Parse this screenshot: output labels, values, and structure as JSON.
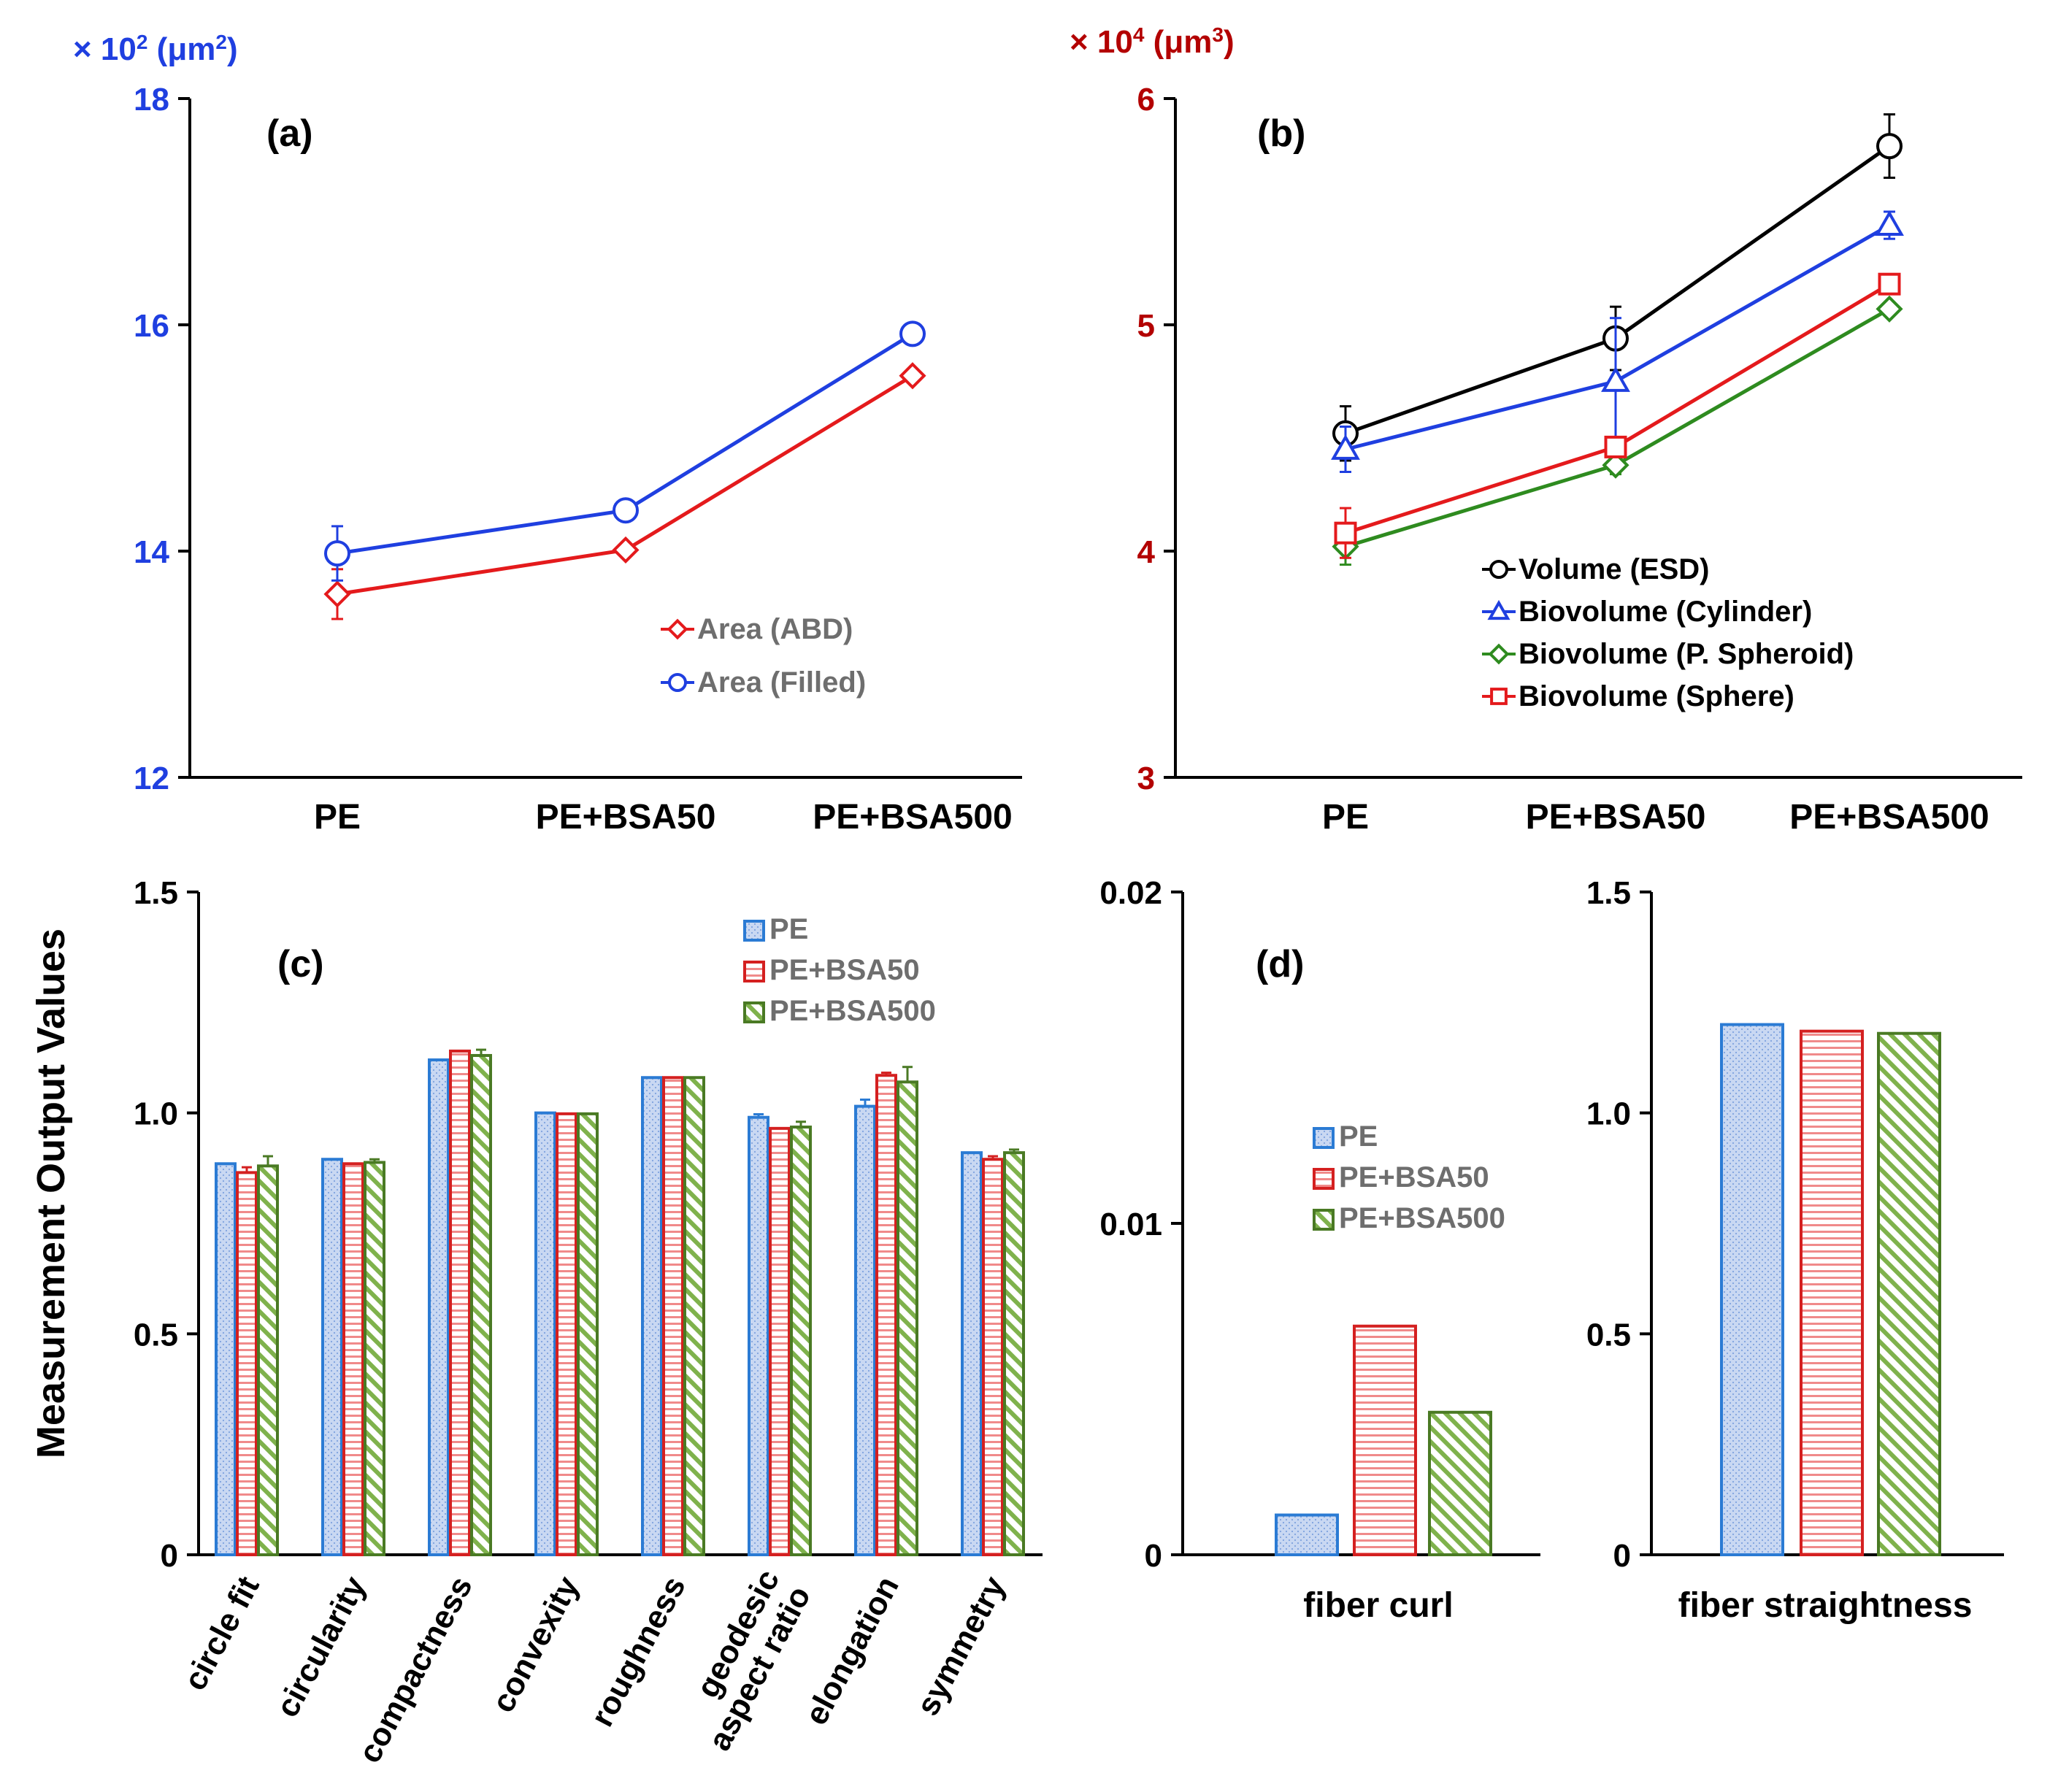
{
  "figure": {
    "ylabel_cd": "Measurement Output Values"
  },
  "colors": {
    "blue": "#1f3fe0",
    "red": "#e41a1c",
    "black": "#000000",
    "green": "#2e8b1f",
    "darkred": "#b30000",
    "bar_blue_edge": "#2b7bd4",
    "bar_blue_fill": "#c9d8f2",
    "bar_red_edge": "#d42020",
    "bar_green_edge": "#4a7a24",
    "legend_text": "#6e6e6e"
  },
  "chart_data": [
    {
      "panel": "a",
      "type": "line",
      "panel_label": "(a)",
      "multiplier": "× 10",
      "multiplier_exp": "2",
      "unit_open": " (μm",
      "unit_exp": "2",
      "unit_close": ")",
      "categories": [
        "PE",
        "PE+BSA50",
        "PE+BSA500"
      ],
      "ylim": [
        12,
        18
      ],
      "yticks": [
        "12",
        "14",
        "16",
        "18"
      ],
      "series": [
        {
          "name": "Area (ABD)",
          "marker": "diamond",
          "color": "#e41a1c",
          "values": [
            13.62,
            14.01,
            15.55
          ],
          "err": [
            0.22,
            0.0,
            0.0
          ]
        },
        {
          "name": "Area (Filled)",
          "marker": "circle",
          "color": "#1f3fe0",
          "values": [
            13.98,
            14.36,
            15.92
          ],
          "err": [
            0.24,
            0.0,
            0.0
          ]
        }
      ]
    },
    {
      "panel": "b",
      "type": "line",
      "panel_label": "(b)",
      "multiplier": "× 10",
      "multiplier_exp": "4",
      "unit_open": " (μm",
      "unit_exp": "3",
      "unit_close": ")",
      "categories": [
        "PE",
        "PE+BSA50",
        "PE+BSA500"
      ],
      "ylim": [
        3,
        6
      ],
      "yticks": [
        "3",
        "4",
        "5",
        "6"
      ],
      "series": [
        {
          "name": "Volume (ESD)",
          "marker": "circle",
          "color": "#000000",
          "values": [
            4.52,
            4.94,
            5.79
          ],
          "err": [
            0.12,
            0.14,
            0.14
          ]
        },
        {
          "name": "Biovolume (Cylinder)",
          "marker": "triangle",
          "color": "#1f3fe0",
          "values": [
            4.45,
            4.75,
            5.44
          ],
          "err": [
            0.1,
            0.28,
            0.06
          ]
        },
        {
          "name": "Biovolume (P. Spheroid)",
          "marker": "diamond",
          "color": "#2e8b1f",
          "values": [
            4.02,
            4.38,
            5.07
          ],
          "err": [
            0.08,
            0.04,
            0.03
          ]
        },
        {
          "name": "Biovolume (Sphere)",
          "marker": "square",
          "color": "#e41a1c",
          "values": [
            4.08,
            4.46,
            5.18
          ],
          "err": [
            0.11,
            0.0,
            0.0
          ]
        }
      ]
    },
    {
      "panel": "c",
      "type": "bar",
      "panel_label": "(c)",
      "categories": [
        "circle fit",
        "circularity",
        "compactness",
        "convexity",
        "roughness",
        "geodesic aspect ratio",
        "elongation",
        "symmetry"
      ],
      "ylim": [
        0,
        1.5
      ],
      "yticks": [
        "0",
        "0.5",
        "1.0",
        "1.5"
      ],
      "series": [
        {
          "name": "PE",
          "values": [
            0.885,
            0.895,
            1.12,
            1.0,
            1.08,
            0.99,
            1.015,
            0.91
          ],
          "err": [
            0.0,
            0.0,
            0.0,
            0.0,
            0.0,
            0.007,
            0.015,
            0.0
          ]
        },
        {
          "name": "PE+BSA50",
          "values": [
            0.865,
            0.885,
            1.14,
            0.998,
            1.08,
            0.965,
            1.085,
            0.895
          ],
          "err": [
            0.012,
            0.0,
            0.0,
            0.0,
            0.0,
            0.0,
            0.006,
            0.007
          ]
        },
        {
          "name": "PE+BSA500",
          "values": [
            0.88,
            0.888,
            1.13,
            0.998,
            1.08,
            0.968,
            1.07,
            0.91
          ],
          "err": [
            0.022,
            0.007,
            0.013,
            0.0,
            0.0,
            0.012,
            0.034,
            0.007
          ]
        }
      ]
    },
    {
      "panel": "d",
      "type": "bar",
      "panel_label": "(d)",
      "category": "fiber curl",
      "ylim": [
        0,
        0.02
      ],
      "yticks": [
        "0",
        "0.01",
        "0.02"
      ],
      "series": [
        {
          "name": "PE",
          "values": [
            0.0012
          ]
        },
        {
          "name": "PE+BSA50",
          "values": [
            0.0069
          ]
        },
        {
          "name": "PE+BSA500",
          "values": [
            0.0043
          ]
        }
      ]
    },
    {
      "panel": "d2",
      "type": "bar",
      "category": "fiber straightness",
      "ylim": [
        0,
        1.5
      ],
      "yticks": [
        "0",
        "0.5",
        "1.0",
        "1.5"
      ],
      "series": [
        {
          "name": "PE",
          "values": [
            1.2
          ]
        },
        {
          "name": "PE+BSA50",
          "values": [
            1.185
          ]
        },
        {
          "name": "PE+BSA500",
          "values": [
            1.18
          ]
        }
      ]
    }
  ]
}
